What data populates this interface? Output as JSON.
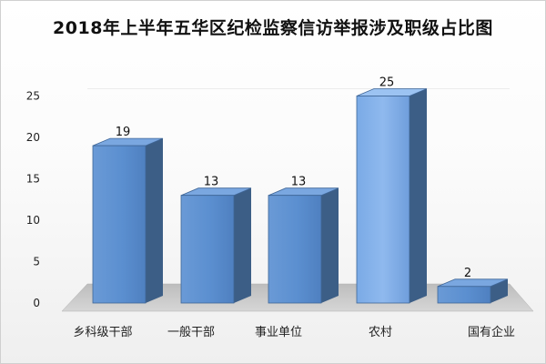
{
  "chart_data": {
    "type": "bar",
    "title": "2018年上半年五华区纪检监察信访举报涉及职级占比图",
    "categories": [
      "乡科级干部",
      "一般干部",
      "事业单位",
      "农村",
      "国有企业"
    ],
    "values": [
      19,
      13,
      13,
      25,
      2
    ],
    "data_labels": [
      "19",
      "13",
      "13",
      "25",
      "2"
    ],
    "y_ticks": [
      "0",
      "5",
      "10",
      "15",
      "20",
      "25"
    ],
    "ylim": [
      0,
      25
    ],
    "xlabel": "",
    "ylabel": "",
    "grid": false,
    "style": "3d-column",
    "colors": {
      "bar_front": "#5b8fd0",
      "bar_highlight": "#8fb6ea",
      "bar_side": "#3c5e86",
      "bar_top": "#7aa7e0",
      "floor": "#c8c8c8"
    }
  }
}
